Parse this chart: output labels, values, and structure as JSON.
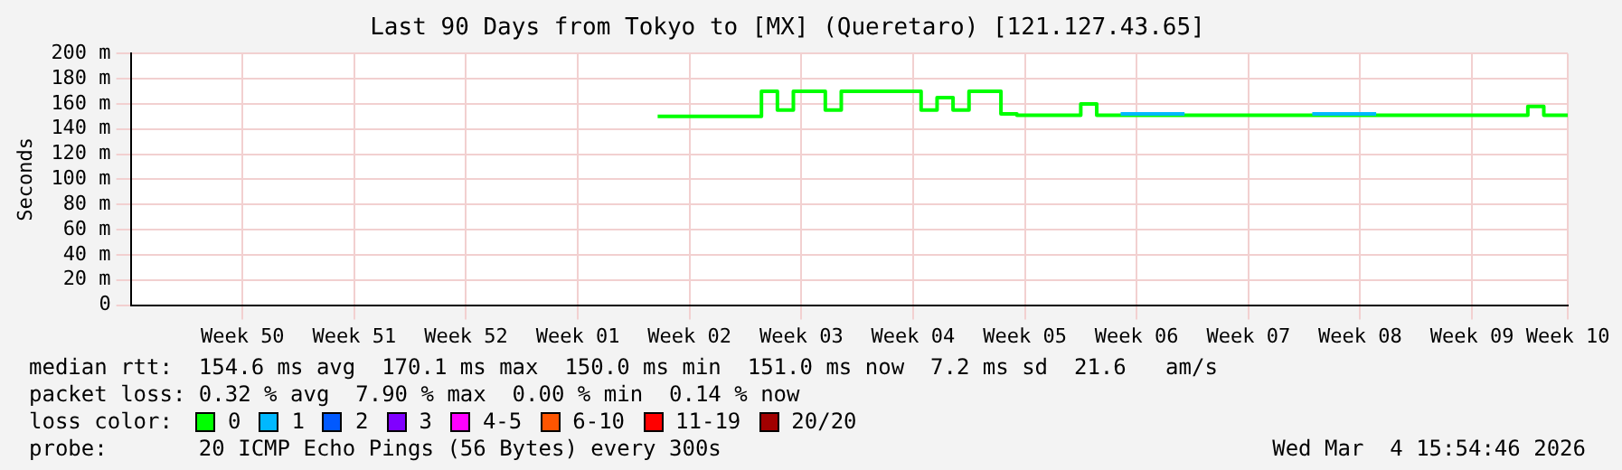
{
  "chart_data": {
    "type": "step",
    "title": "Last 90 Days from Tokyo to [MX] (Queretaro) [121.127.43.65]",
    "ylabel": "Seconds",
    "categories": [
      null,
      null,
      null,
      null,
      null,
      null,
      null,
      "Week 50",
      null,
      null,
      null,
      null,
      null,
      null,
      "Week 51",
      null,
      null,
      null,
      null,
      null,
      null,
      "Week 52",
      null,
      null,
      null,
      null,
      null,
      null,
      "Week 01",
      null,
      null,
      null,
      null,
      null,
      null,
      "Week 02",
      null,
      null,
      null,
      null,
      null,
      null,
      "Week 03",
      null,
      null,
      null,
      null,
      null,
      null,
      "Week 04",
      null,
      null,
      null,
      null,
      null,
      null,
      "Week 05",
      null,
      null,
      null,
      null,
      null,
      null,
      "Week 06",
      null,
      null,
      null,
      null,
      null,
      null,
      "Week 07",
      null,
      null,
      null,
      null,
      null,
      null,
      "Week 08",
      null,
      null,
      null,
      null,
      null,
      null,
      "Week 09",
      null,
      null,
      null,
      null,
      null,
      "Week 10"
    ],
    "ylim": [
      0,
      200
    ],
    "yticks": [
      0,
      {
        "value": 20,
        "label": "20 m"
      },
      {
        "value": 40,
        "label": "40 m"
      },
      {
        "value": 60,
        "label": "60 m"
      },
      {
        "value": 80,
        "label": "80 m"
      },
      {
        "value": 100,
        "label": "100 m"
      },
      {
        "value": 120,
        "label": "120 m"
      },
      {
        "value": 140,
        "label": "140 m"
      },
      {
        "value": 160,
        "label": "160 m"
      },
      {
        "value": 180,
        "label": "180 m"
      },
      {
        "value": 200,
        "label": "200 m"
      }
    ],
    "grid": true,
    "legend": "bottom",
    "marker": "none",
    "line_style": "solid",
    "legend_title": "loss color:",
    "series": [
      {
        "name": "0",
        "color": "#00ff00",
        "values": [
          null,
          null,
          null,
          null,
          null,
          null,
          null,
          null,
          null,
          null,
          null,
          null,
          null,
          null,
          null,
          null,
          null,
          null,
          null,
          null,
          null,
          null,
          null,
          null,
          null,
          null,
          null,
          null,
          null,
          null,
          null,
          null,
          null,
          150,
          150,
          150,
          150,
          150,
          150,
          150,
          170,
          155,
          170,
          170,
          155,
          170,
          170,
          170,
          170,
          170,
          155,
          165,
          155,
          170,
          170,
          152,
          151,
          151,
          151,
          151,
          160,
          151,
          151,
          151,
          151,
          151,
          151,
          151,
          151,
          151,
          151,
          151,
          151,
          151,
          151,
          151,
          151,
          151,
          151,
          151,
          151,
          151,
          151,
          151,
          151,
          151,
          151,
          151,
          158,
          151,
          151
        ]
      },
      {
        "name": "1",
        "color": "#00b8ff",
        "values": [
          null,
          null,
          null,
          null,
          null,
          null,
          null,
          null,
          null,
          null,
          null,
          null,
          null,
          null,
          null,
          null,
          null,
          null,
          null,
          null,
          null,
          null,
          null,
          null,
          null,
          null,
          null,
          null,
          null,
          null,
          null,
          null,
          null,
          null,
          null,
          null,
          null,
          null,
          null,
          null,
          null,
          null,
          null,
          null,
          null,
          null,
          null,
          null,
          null,
          null,
          null,
          null,
          null,
          null,
          null,
          null,
          null,
          null,
          null,
          null,
          null,
          null,
          152,
          152,
          152,
          152,
          152,
          null,
          null,
          null,
          null,
          null,
          null,
          null,
          152,
          152,
          152,
          152,
          152,
          null,
          null,
          null,
          null,
          null,
          null,
          null,
          null,
          null,
          null,
          null,
          null
        ]
      },
      {
        "name": "2",
        "color": "#0059ff",
        "values": [
          null,
          null,
          null,
          null,
          null,
          null,
          null,
          null,
          null,
          null,
          null,
          null,
          null,
          null,
          null,
          null,
          null,
          null,
          null,
          null,
          null,
          null,
          null,
          null,
          null,
          null,
          null,
          null,
          null,
          null,
          null,
          null,
          null,
          null,
          null,
          null,
          null,
          null,
          null,
          null,
          null,
          null,
          null,
          null,
          null,
          null,
          null,
          null,
          null,
          null,
          null,
          null,
          null,
          null,
          null,
          null,
          null,
          null,
          null,
          null,
          null,
          null,
          null,
          null,
          null,
          null,
          null,
          null,
          null,
          null,
          null,
          null,
          null,
          null,
          null,
          null,
          null,
          null,
          null,
          null,
          null,
          null,
          null,
          null,
          null,
          null,
          null,
          null,
          null,
          null,
          null
        ]
      },
      {
        "name": "3",
        "color": "#8000ff",
        "values": [
          null,
          null,
          null,
          null,
          null,
          null,
          null,
          null,
          null,
          null,
          null,
          null,
          null,
          null,
          null,
          null,
          null,
          null,
          null,
          null,
          null,
          null,
          null,
          null,
          null,
          null,
          null,
          null,
          null,
          null,
          null,
          null,
          null,
          null,
          null,
          null,
          null,
          null,
          null,
          null,
          null,
          null,
          null,
          null,
          null,
          null,
          null,
          null,
          null,
          null,
          null,
          null,
          null,
          null,
          null,
          null,
          null,
          null,
          null,
          null,
          null,
          null,
          null,
          null,
          null,
          null,
          null,
          null,
          null,
          null,
          null,
          null,
          null,
          null,
          null,
          null,
          null,
          null,
          null,
          null,
          null,
          null,
          null,
          null,
          null,
          null,
          null,
          null,
          null,
          null,
          null
        ]
      },
      {
        "name": "4-5",
        "color": "#ff00ff",
        "values": [
          null,
          null,
          null,
          null,
          null,
          null,
          null,
          null,
          null,
          null,
          null,
          null,
          null,
          null,
          null,
          null,
          null,
          null,
          null,
          null,
          null,
          null,
          null,
          null,
          null,
          null,
          null,
          null,
          null,
          null,
          null,
          null,
          null,
          null,
          null,
          null,
          null,
          null,
          null,
          null,
          null,
          null,
          null,
          null,
          null,
          null,
          null,
          null,
          null,
          null,
          null,
          null,
          null,
          null,
          null,
          null,
          null,
          null,
          null,
          null,
          null,
          null,
          null,
          null,
          null,
          null,
          null,
          null,
          null,
          null,
          null,
          null,
          null,
          null,
          null,
          null,
          null,
          null,
          null,
          null,
          null,
          null,
          null,
          null,
          null,
          null,
          null,
          null,
          null,
          null,
          null
        ]
      },
      {
        "name": "6-10",
        "color": "#ff5500",
        "values": [
          null,
          null,
          null,
          null,
          null,
          null,
          null,
          null,
          null,
          null,
          null,
          null,
          null,
          null,
          null,
          null,
          null,
          null,
          null,
          null,
          null,
          null,
          null,
          null,
          null,
          null,
          null,
          null,
          null,
          null,
          null,
          null,
          null,
          null,
          null,
          null,
          null,
          null,
          null,
          null,
          null,
          null,
          null,
          null,
          null,
          null,
          null,
          null,
          null,
          null,
          null,
          null,
          null,
          null,
          null,
          null,
          null,
          null,
          null,
          null,
          null,
          null,
          null,
          null,
          null,
          null,
          null,
          null,
          null,
          null,
          null,
          null,
          null,
          null,
          null,
          null,
          null,
          null,
          null,
          null,
          null,
          null,
          null,
          null,
          null,
          null,
          null,
          null,
          null,
          null,
          null
        ]
      },
      {
        "name": "11-19",
        "color": "#ff0000",
        "values": [
          null,
          null,
          null,
          null,
          null,
          null,
          null,
          null,
          null,
          null,
          null,
          null,
          null,
          null,
          null,
          null,
          null,
          null,
          null,
          null,
          null,
          null,
          null,
          null,
          null,
          null,
          null,
          null,
          null,
          null,
          null,
          null,
          null,
          null,
          null,
          null,
          null,
          null,
          null,
          null,
          null,
          null,
          null,
          null,
          null,
          null,
          null,
          null,
          null,
          null,
          null,
          null,
          null,
          null,
          null,
          null,
          null,
          null,
          null,
          null,
          null,
          null,
          null,
          null,
          null,
          null,
          null,
          null,
          null,
          null,
          null,
          null,
          null,
          null,
          null,
          null,
          null,
          null,
          null,
          null,
          null,
          null,
          null,
          null,
          null,
          null,
          null,
          null,
          null,
          null,
          null
        ]
      },
      {
        "name": "20/20",
        "color": "#a10000",
        "values": [
          null,
          null,
          null,
          null,
          null,
          null,
          null,
          null,
          null,
          null,
          null,
          null,
          null,
          null,
          null,
          null,
          null,
          null,
          null,
          null,
          null,
          null,
          null,
          null,
          null,
          null,
          null,
          null,
          null,
          null,
          null,
          null,
          null,
          null,
          null,
          null,
          null,
          null,
          null,
          null,
          null,
          null,
          null,
          null,
          null,
          null,
          null,
          null,
          null,
          null,
          null,
          null,
          null,
          null,
          null,
          null,
          null,
          null,
          null,
          null,
          null,
          null,
          null,
          null,
          null,
          null,
          null,
          null,
          null,
          null,
          null,
          null,
          null,
          null,
          null,
          null,
          null,
          null,
          null,
          null,
          null,
          null,
          null,
          null,
          null,
          null,
          null,
          null,
          null,
          null,
          null
        ]
      }
    ],
    "annotations": [
      "median rtt:  154.6 ms avg  170.1 ms max  150.0 ms min  151.0 ms now  7.2 ms sd  21.6   am/s",
      "packet loss: 0.32 % avg  7.90 % max  0.00 % min  0.14 % now",
      "probe:       20 ICMP Echo Pings (56 Bytes) every 300s",
      "Wed Mar  4 15:54:46 2026"
    ]
  }
}
